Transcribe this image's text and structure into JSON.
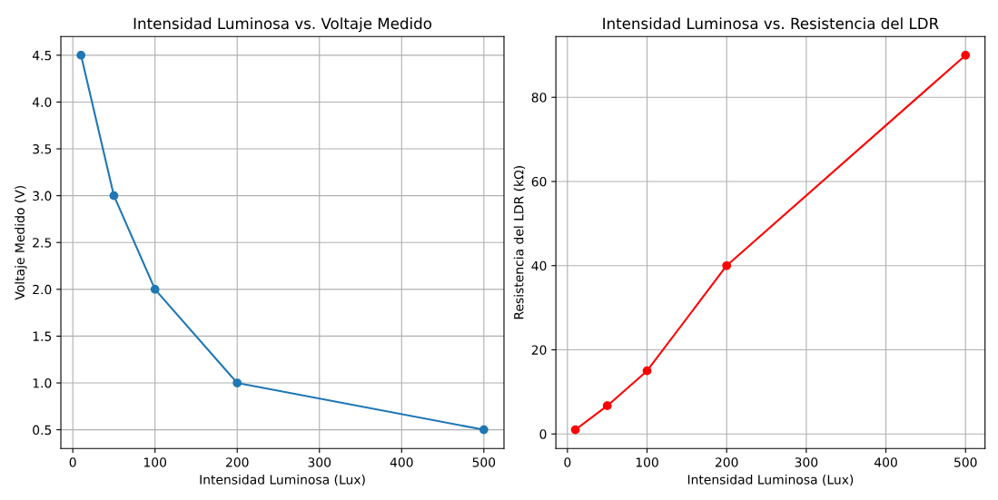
{
  "chart_data": [
    {
      "type": "line",
      "title": "Intensidad Luminosa vs. Voltaje Medido",
      "xlabel": "Intensidad Luminosa (Lux)",
      "ylabel": "Voltaje Medido (V)",
      "x": [
        10,
        50,
        100,
        200,
        500
      ],
      "series": [
        {
          "color": "#1f77b4",
          "values": [
            4.5,
            3.0,
            2.0,
            1.0,
            0.5
          ]
        }
      ],
      "xlim": [
        -14.5,
        524.5
      ],
      "xticks": [
        0,
        100,
        200,
        300,
        400,
        500
      ],
      "ylim": [
        0.3,
        4.7
      ],
      "yticks": [
        {
          "value": 0.5,
          "label": "0.5"
        },
        {
          "value": 1.0,
          "label": "1.0"
        },
        {
          "value": 1.5,
          "label": "1.5"
        },
        {
          "value": 2.0,
          "label": "2.0"
        },
        {
          "value": 2.5,
          "label": "2.5"
        },
        {
          "value": 3.0,
          "label": "3.0"
        },
        {
          "value": 3.5,
          "label": "3.5"
        },
        {
          "value": 4.0,
          "label": "4.0"
        },
        {
          "value": 4.5,
          "label": "4.5"
        }
      ],
      "grid": true,
      "marker": "circle",
      "line_style": "solid"
    },
    {
      "type": "line",
      "title": "Intensidad Luminosa vs. Resistencia del LDR",
      "xlabel": "Intensidad Luminosa (Lux)",
      "ylabel": "Resistencia del LDR (kΩ)",
      "x": [
        10,
        50,
        100,
        200,
        500
      ],
      "series": [
        {
          "color": "#ff0000",
          "values": [
            1,
            6.7,
            15,
            40,
            90
          ]
        }
      ],
      "xlim": [
        -14.5,
        524.5
      ],
      "xticks": [
        0,
        100,
        200,
        300,
        400,
        500
      ],
      "ylim": [
        -3.45,
        94.45
      ],
      "yticks": [
        0,
        20,
        40,
        60,
        80
      ],
      "grid": true,
      "marker": "circle",
      "line_style": "solid"
    }
  ]
}
